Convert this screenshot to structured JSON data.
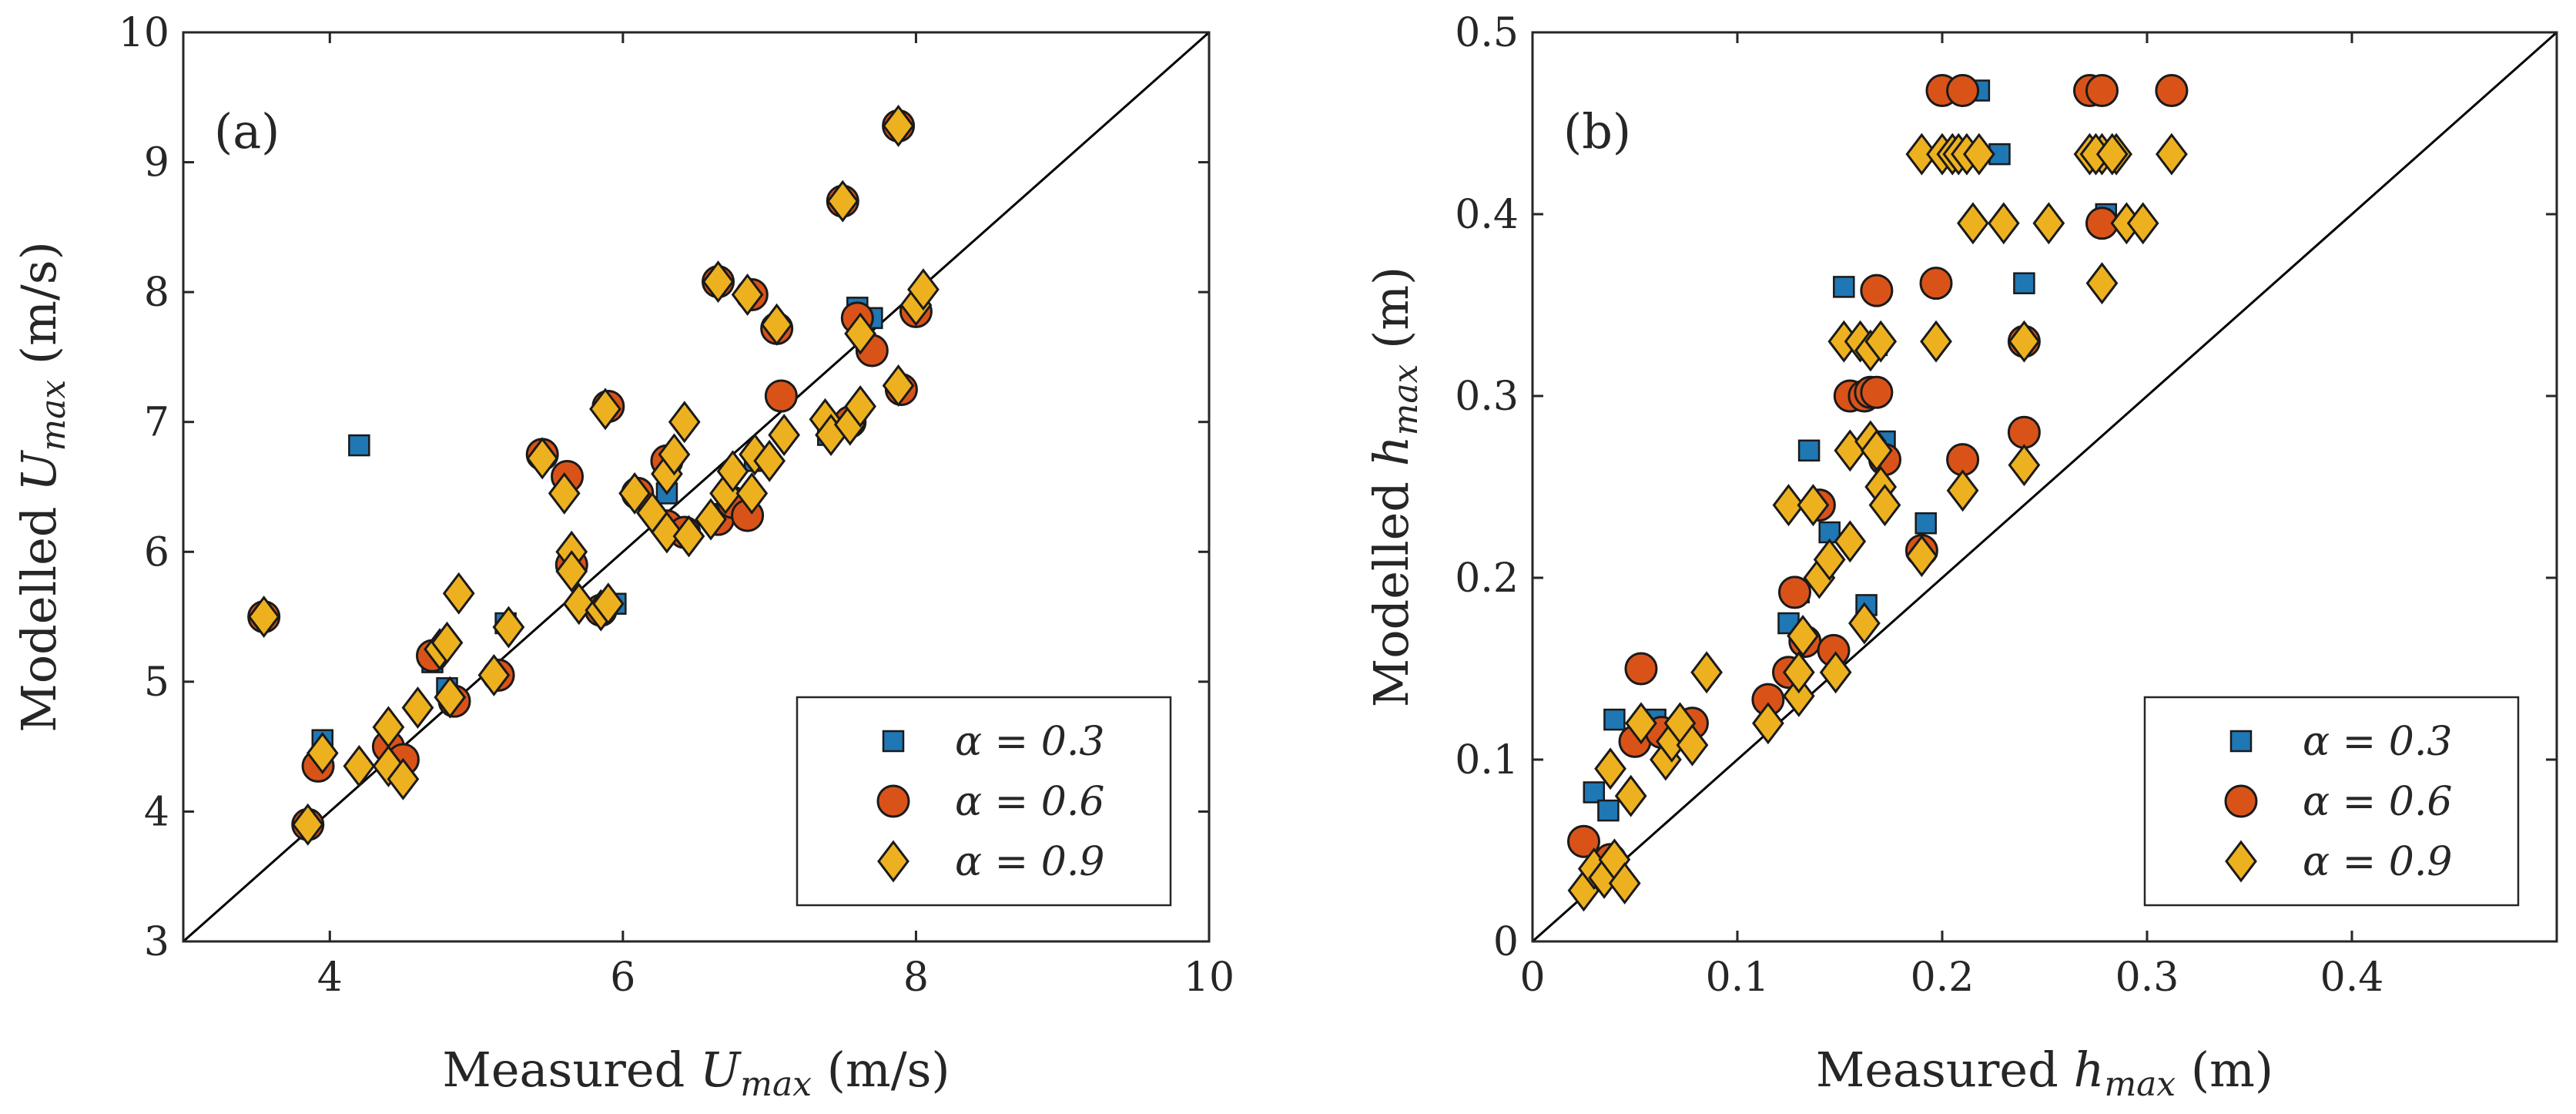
{
  "colors": {
    "alpha03": "#1f77b4",
    "alpha06": "#d95319",
    "alpha09": "#edb120"
  },
  "chart_data": [
    {
      "type": "scatter",
      "panel_label": "(a)",
      "xlabel": "Measured U_max (m/s)",
      "ylabel": "Modelled U_max (m/s)",
      "xlabel_parts": {
        "pre": "Measured ",
        "var": "U",
        "sub": "max",
        "post": " (m/s)"
      },
      "ylabel_parts": {
        "pre": "Modelled ",
        "var": "U",
        "sub": "max",
        "post": " (m/s)"
      },
      "xlim": [
        3,
        10
      ],
      "ylim": [
        3,
        10
      ],
      "xticks": [
        "4",
        "6",
        "8",
        "10"
      ],
      "xtick_values": [
        4,
        6,
        8,
        10
      ],
      "yticks": [
        "3",
        "4",
        "5",
        "6",
        "7",
        "8",
        "9",
        "10"
      ],
      "ytick_values": [
        3,
        4,
        5,
        6,
        7,
        8,
        9,
        10
      ],
      "diagonal": [
        [
          3,
          3
        ],
        [
          10,
          10
        ]
      ],
      "legend": {
        "position": "bottom-right",
        "entries": [
          "α = 0.3",
          "α = 0.6",
          "α = 0.9"
        ]
      },
      "series": [
        {
          "name": "α = 0.3",
          "marker": "square",
          "points": [
            [
              4.2,
              6.82
            ],
            [
              3.95,
              4.55
            ],
            [
              4.7,
              5.15
            ],
            [
              4.8,
              4.95
            ],
            [
              6.3,
              6.45
            ],
            [
              7.6,
              7.88
            ],
            [
              5.95,
              5.6
            ],
            [
              6.9,
              6.7
            ],
            [
              7.4,
              6.9
            ],
            [
              7.7,
              7.8
            ],
            [
              3.55,
              5.5
            ],
            [
              5.2,
              5.45
            ]
          ]
        },
        {
          "name": "α = 0.6",
          "marker": "circle",
          "points": [
            [
              3.92,
              4.35
            ],
            [
              4.4,
              4.5
            ],
            [
              4.5,
              4.4
            ],
            [
              4.85,
              4.85
            ],
            [
              4.7,
              5.2
            ],
            [
              5.15,
              5.05
            ],
            [
              5.45,
              6.75
            ],
            [
              5.62,
              6.58
            ],
            [
              6.1,
              6.45
            ],
            [
              6.3,
              6.2
            ],
            [
              6.42,
              6.15
            ],
            [
              6.65,
              6.25
            ],
            [
              6.75,
              6.38
            ],
            [
              6.85,
              6.28
            ],
            [
              7.08,
              7.2
            ],
            [
              7.05,
              7.72
            ],
            [
              7.6,
              7.8
            ],
            [
              7.7,
              7.55
            ],
            [
              7.9,
              7.25
            ],
            [
              8.0,
              7.85
            ],
            [
              7.55,
              7.0
            ],
            [
              6.3,
              6.7
            ],
            [
              5.65,
              5.9
            ],
            [
              5.85,
              5.55
            ],
            [
              3.55,
              5.5
            ],
            [
              3.85,
              3.9
            ],
            [
              6.65,
              8.08
            ],
            [
              6.88,
              7.98
            ],
            [
              7.5,
              8.7
            ],
            [
              7.88,
              9.28
            ],
            [
              5.9,
              7.12
            ]
          ]
        },
        {
          "name": "α = 0.9",
          "marker": "diamond",
          "points": [
            [
              3.85,
              3.9
            ],
            [
              3.55,
              5.5
            ],
            [
              3.95,
              4.45
            ],
            [
              4.2,
              4.35
            ],
            [
              4.4,
              4.65
            ],
            [
              4.4,
              4.35
            ],
            [
              4.5,
              4.25
            ],
            [
              4.6,
              4.8
            ],
            [
              4.75,
              5.25
            ],
            [
              4.8,
              5.3
            ],
            [
              4.88,
              5.68
            ],
            [
              4.82,
              4.88
            ],
            [
              5.12,
              5.05
            ],
            [
              5.22,
              5.42
            ],
            [
              5.45,
              6.72
            ],
            [
              5.6,
              6.45
            ],
            [
              5.65,
              6.0
            ],
            [
              5.65,
              5.85
            ],
            [
              5.7,
              5.6
            ],
            [
              5.85,
              5.55
            ],
            [
              5.9,
              5.6
            ],
            [
              5.88,
              7.1
            ],
            [
              6.08,
              6.45
            ],
            [
              6.2,
              6.3
            ],
            [
              6.3,
              6.15
            ],
            [
              6.3,
              6.6
            ],
            [
              6.35,
              6.75
            ],
            [
              6.42,
              7.0
            ],
            [
              6.45,
              6.12
            ],
            [
              6.6,
              6.25
            ],
            [
              6.65,
              8.08
            ],
            [
              6.7,
              6.45
            ],
            [
              6.75,
              6.62
            ],
            [
              6.85,
              7.98
            ],
            [
              6.88,
              6.45
            ],
            [
              6.9,
              6.75
            ],
            [
              7.0,
              6.7
            ],
            [
              7.05,
              7.75
            ],
            [
              7.1,
              6.9
            ],
            [
              7.38,
              7.02
            ],
            [
              7.42,
              6.9
            ],
            [
              7.5,
              8.7
            ],
            [
              7.55,
              6.98
            ],
            [
              7.62,
              7.12
            ],
            [
              7.62,
              7.68
            ],
            [
              7.88,
              9.28
            ],
            [
              7.88,
              7.28
            ],
            [
              8.0,
              7.9
            ],
            [
              8.05,
              8.02
            ]
          ]
        }
      ]
    },
    {
      "type": "scatter",
      "panel_label": "(b)",
      "xlabel": "Measured h_max (m)",
      "ylabel": "Modelled h_max (m)",
      "xlabel_parts": {
        "pre": "Measured ",
        "var": "h",
        "sub": "max",
        "post": " (m)"
      },
      "ylabel_parts": {
        "pre": "Modelled ",
        "var": "h",
        "sub": "max",
        "post": " (m)"
      },
      "xlim": [
        0,
        0.5
      ],
      "ylim": [
        0,
        0.5
      ],
      "xticks": [
        "0",
        "0.1",
        "0.2",
        "0.3",
        "0.4"
      ],
      "xtick_values": [
        0,
        0.1,
        0.2,
        0.3,
        0.4
      ],
      "yticks": [
        "0",
        "0.1",
        "0.2",
        "0.3",
        "0.4",
        "0.5"
      ],
      "ytick_values": [
        0,
        0.1,
        0.2,
        0.3,
        0.4,
        0.5
      ],
      "diagonal": [
        [
          0,
          0
        ],
        [
          0.5,
          0.5
        ]
      ],
      "legend": {
        "position": "bottom-right",
        "entries": [
          "α = 0.3",
          "α = 0.6",
          "α = 0.9"
        ]
      },
      "series": [
        {
          "name": "α = 0.3",
          "marker": "square",
          "points": [
            [
              0.03,
              0.082
            ],
            [
              0.037,
              0.072
            ],
            [
              0.04,
              0.122
            ],
            [
              0.06,
              0.122
            ],
            [
              0.125,
              0.175
            ],
            [
              0.13,
              0.192
            ],
            [
              0.135,
              0.27
            ],
            [
              0.145,
              0.225
            ],
            [
              0.152,
              0.36
            ],
            [
              0.163,
              0.185
            ],
            [
              0.168,
              0.328
            ],
            [
              0.172,
              0.275
            ],
            [
              0.192,
              0.23
            ],
            [
              0.218,
              0.468
            ],
            [
              0.228,
              0.433
            ],
            [
              0.24,
              0.362
            ],
            [
              0.272,
              0.468
            ],
            [
              0.28,
              0.4
            ]
          ]
        },
        {
          "name": "α = 0.6",
          "marker": "circle",
          "points": [
            [
              0.025,
              0.055
            ],
            [
              0.038,
              0.045
            ],
            [
              0.05,
              0.11
            ],
            [
              0.053,
              0.15
            ],
            [
              0.063,
              0.115
            ],
            [
              0.078,
              0.12
            ],
            [
              0.115,
              0.133
            ],
            [
              0.125,
              0.148
            ],
            [
              0.128,
              0.192
            ],
            [
              0.133,
              0.165
            ],
            [
              0.14,
              0.24
            ],
            [
              0.147,
              0.16
            ],
            [
              0.155,
              0.3
            ],
            [
              0.162,
              0.3
            ],
            [
              0.165,
              0.302
            ],
            [
              0.168,
              0.358
            ],
            [
              0.168,
              0.302
            ],
            [
              0.172,
              0.265
            ],
            [
              0.19,
              0.215
            ],
            [
              0.197,
              0.362
            ],
            [
              0.2,
              0.468
            ],
            [
              0.21,
              0.468
            ],
            [
              0.21,
              0.265
            ],
            [
              0.24,
              0.28
            ],
            [
              0.272,
              0.468
            ],
            [
              0.278,
              0.468
            ],
            [
              0.278,
              0.395
            ],
            [
              0.312,
              0.468
            ],
            [
              0.24,
              0.33
            ]
          ]
        },
        {
          "name": "α = 0.9",
          "marker": "diamond",
          "points": [
            [
              0.025,
              0.028
            ],
            [
              0.03,
              0.04
            ],
            [
              0.035,
              0.035
            ],
            [
              0.04,
              0.045
            ],
            [
              0.045,
              0.032
            ],
            [
              0.048,
              0.08
            ],
            [
              0.053,
              0.12
            ],
            [
              0.038,
              0.095
            ],
            [
              0.065,
              0.1
            ],
            [
              0.068,
              0.11
            ],
            [
              0.072,
              0.12
            ],
            [
              0.078,
              0.108
            ],
            [
              0.085,
              0.148
            ],
            [
              0.115,
              0.12
            ],
            [
              0.125,
              0.24
            ],
            [
              0.13,
              0.135
            ],
            [
              0.13,
              0.148
            ],
            [
              0.132,
              0.168
            ],
            [
              0.137,
              0.24
            ],
            [
              0.14,
              0.2
            ],
            [
              0.145,
              0.21
            ],
            [
              0.148,
              0.148
            ],
            [
              0.152,
              0.33
            ],
            [
              0.155,
              0.27
            ],
            [
              0.155,
              0.22
            ],
            [
              0.16,
              0.33
            ],
            [
              0.162,
              0.175
            ],
            [
              0.165,
              0.325
            ],
            [
              0.165,
              0.275
            ],
            [
              0.168,
              0.27
            ],
            [
              0.17,
              0.33
            ],
            [
              0.17,
              0.25
            ],
            [
              0.172,
              0.24
            ],
            [
              0.19,
              0.212
            ],
            [
              0.19,
              0.433
            ],
            [
              0.197,
              0.33
            ],
            [
              0.2,
              0.433
            ],
            [
              0.205,
              0.433
            ],
            [
              0.208,
              0.433
            ],
            [
              0.21,
              0.248
            ],
            [
              0.212,
              0.433
            ],
            [
              0.215,
              0.395
            ],
            [
              0.218,
              0.433
            ],
            [
              0.23,
              0.395
            ],
            [
              0.24,
              0.262
            ],
            [
              0.24,
              0.33
            ],
            [
              0.252,
              0.395
            ],
            [
              0.272,
              0.433
            ],
            [
              0.278,
              0.433
            ],
            [
              0.278,
              0.362
            ],
            [
              0.285,
              0.433
            ],
            [
              0.29,
              0.395
            ],
            [
              0.298,
              0.395
            ],
            [
              0.312,
              0.433
            ],
            [
              0.275,
              0.433
            ],
            [
              0.283,
              0.433
            ]
          ]
        }
      ]
    }
  ]
}
